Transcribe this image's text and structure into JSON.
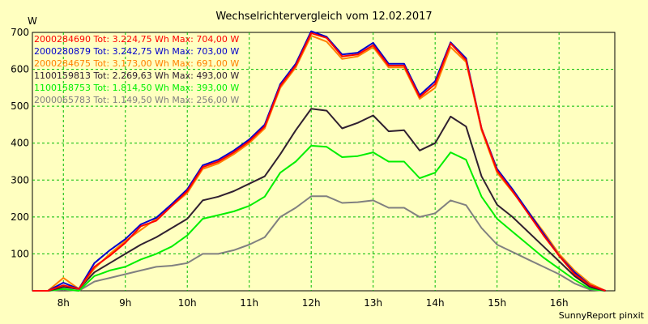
{
  "chart_data": {
    "type": "line",
    "title": "Wechselrichtervergleich vom 12.02.2017",
    "ylabel": "W",
    "xlabel": "",
    "ylim": [
      0,
      700
    ],
    "xlim": [
      7.5,
      16.9
    ],
    "y_ticks": [
      100,
      200,
      300,
      400,
      500,
      600,
      700
    ],
    "x_ticks": [
      {
        "value": 8,
        "label": "8h"
      },
      {
        "value": 9,
        "label": "9h"
      },
      {
        "value": 10,
        "label": "10h"
      },
      {
        "value": 11,
        "label": "11h"
      },
      {
        "value": 12,
        "label": "12h"
      },
      {
        "value": 13,
        "label": "13h"
      },
      {
        "value": 14,
        "label": "14h"
      },
      {
        "value": 15,
        "label": "15h"
      },
      {
        "value": 16,
        "label": "16h"
      }
    ],
    "grid": true,
    "legend_position": "top-left",
    "x": [
      7.5,
      7.75,
      8.0,
      8.25,
      8.5,
      8.75,
      9.0,
      9.25,
      9.5,
      9.75,
      10.0,
      10.25,
      10.5,
      10.75,
      11.0,
      11.25,
      11.5,
      11.75,
      12.0,
      12.25,
      12.5,
      12.75,
      13.0,
      13.25,
      13.5,
      13.75,
      14.0,
      14.25,
      14.5,
      14.75,
      15.0,
      15.25,
      15.5,
      15.75,
      16.0,
      16.25,
      16.5,
      16.75
    ],
    "series": [
      {
        "name": "2000284690",
        "legend": "2000284690 Tot: 3.224,75 Wh Max: 704,00 W",
        "color": "#ff0000",
        "values": [
          0,
          0,
          15,
          5,
          65,
          95,
          130,
          175,
          190,
          230,
          270,
          335,
          350,
          375,
          405,
          445,
          555,
          610,
          698,
          685,
          635,
          640,
          665,
          610,
          610,
          525,
          560,
          670,
          625,
          440,
          325,
          270,
          210,
          150,
          95,
          45,
          15,
          0
        ]
      },
      {
        "name": "2000280879",
        "legend": "2000280879 Tot: 3.242,75 Wh Max: 703,00 W",
        "color": "#0000cc",
        "values": [
          0,
          0,
          22,
          5,
          75,
          110,
          140,
          180,
          198,
          235,
          275,
          340,
          355,
          380,
          410,
          450,
          560,
          615,
          703,
          688,
          640,
          645,
          672,
          615,
          615,
          530,
          568,
          673,
          630,
          440,
          330,
          275,
          215,
          155,
          95,
          50,
          15,
          0
        ]
      },
      {
        "name": "2000284675",
        "legend": "2000284675 Tot: 3.173,00 Wh Max: 691,00 W",
        "color": "#ff8000",
        "values": [
          0,
          0,
          35,
          5,
          60,
          100,
          135,
          165,
          195,
          230,
          265,
          330,
          345,
          370,
          400,
          440,
          550,
          605,
          691,
          675,
          628,
          635,
          660,
          605,
          605,
          520,
          550,
          660,
          620,
          435,
          320,
          268,
          215,
          160,
          100,
          55,
          20,
          0
        ]
      },
      {
        "name": "1100159813",
        "legend": "1100159813 Tot: 2.269,63 Wh Max: 493,00 W",
        "color": "#302030",
        "values": [
          0,
          0,
          10,
          5,
          50,
          75,
          100,
          125,
          145,
          170,
          195,
          245,
          255,
          270,
          290,
          310,
          370,
          435,
          493,
          488,
          440,
          455,
          475,
          432,
          435,
          380,
          400,
          472,
          445,
          310,
          233,
          200,
          160,
          120,
          80,
          40,
          10,
          0
        ]
      },
      {
        "name": "1100158753",
        "legend": "1100158753 Tot: 1.814,50 Wh Max: 393,00 W",
        "color": "#00ee00",
        "values": [
          0,
          0,
          5,
          0,
          40,
          55,
          65,
          85,
          100,
          120,
          150,
          195,
          205,
          215,
          230,
          255,
          320,
          350,
          393,
          390,
          362,
          365,
          375,
          350,
          350,
          305,
          320,
          375,
          355,
          255,
          195,
          160,
          125,
          90,
          60,
          30,
          5,
          0
        ]
      },
      {
        "name": "2000065783",
        "legend": "2000065783 Tot: 1.149,50 Wh Max: 256,00 W",
        "color": "#808080",
        "values": [
          0,
          0,
          3,
          0,
          25,
          35,
          45,
          55,
          65,
          68,
          75,
          100,
          100,
          110,
          125,
          145,
          200,
          225,
          256,
          256,
          238,
          240,
          245,
          225,
          225,
          200,
          210,
          245,
          232,
          170,
          125,
          105,
          85,
          65,
          45,
          20,
          3,
          0
        ]
      }
    ]
  },
  "footer": {
    "credit": "SunnyReport pinxit"
  }
}
